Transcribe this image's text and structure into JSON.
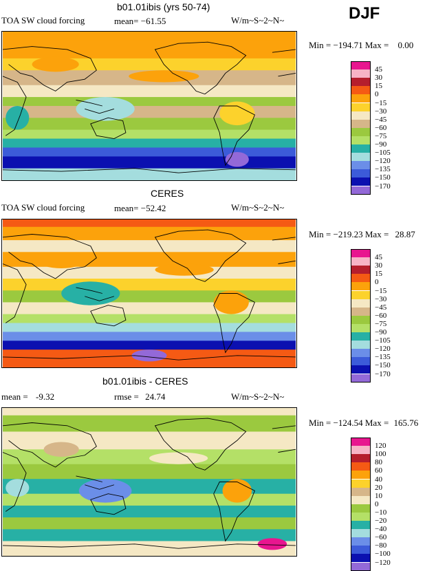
{
  "season": "DJF",
  "colors": {
    "forcing": [
      "#e8168f",
      "#f7b3c6",
      "#b51e2d",
      "#f55a14",
      "#fca20b",
      "#fcd22c",
      "#f5e8c4",
      "#d6b689",
      "#9bc93f",
      "#b4e067",
      "#27b0a5",
      "#a4ddde",
      "#6b8ee8",
      "#3c5bd9",
      "#0b10b0",
      "#9369d8"
    ],
    "diff": [
      "#e8168f",
      "#f7b3c6",
      "#b51e2d",
      "#f55a14",
      "#fca20b",
      "#fcd22c",
      "#d6b689",
      "#f5e8c4",
      "#9bc93f",
      "#b4e067",
      "#27b0a5",
      "#a4ddde",
      "#6b8ee8",
      "#3c5bd9",
      "#0b10b0",
      "#9369d8"
    ]
  },
  "chart_data": [
    {
      "type": "heatmap",
      "title": "b01.01ibis (yrs 50-74)",
      "variable": "TOA SW cloud forcing",
      "mean_label": "mean=",
      "mean": "−61.55",
      "units": "W/m~S~2~N~",
      "min_label": "Min =",
      "min": "−194.71",
      "max_label": "Max =",
      "max": "0.00",
      "levels": [
        "45",
        "30",
        "15",
        "0",
        "−15",
        "−30",
        "−45",
        "−60",
        "−75",
        "−90",
        "−105",
        "−120",
        "−135",
        "−150",
        "−170"
      ]
    },
    {
      "type": "heatmap",
      "title": "CERES",
      "variable": "TOA SW cloud forcing",
      "mean_label": "mean=",
      "mean": "−52.42",
      "units": "W/m~S~2~N~",
      "min_label": "Min =",
      "min": "−219.23",
      "max_label": "Max =",
      "max": "28.87",
      "levels": [
        "45",
        "30",
        "15",
        "0",
        "−15",
        "−30",
        "−45",
        "−60",
        "−75",
        "−90",
        "−105",
        "−120",
        "−135",
        "−150",
        "−170"
      ]
    },
    {
      "type": "heatmap",
      "title": "b01.01ibis - CERES",
      "mean_label": "mean =",
      "mean": "-9.32",
      "rmse_label": "rmse =",
      "rmse": "24.74",
      "units": "W/m~S~2~N~",
      "min_label": "Min =",
      "min": "−124.54",
      "max_label": "Max =",
      "max": "165.76",
      "levels": [
        "120",
        "100",
        "80",
        "60",
        "40",
        "20",
        "10",
        "0",
        "−10",
        "−20",
        "−40",
        "−60",
        "−80",
        "−100",
        "−120"
      ]
    }
  ]
}
